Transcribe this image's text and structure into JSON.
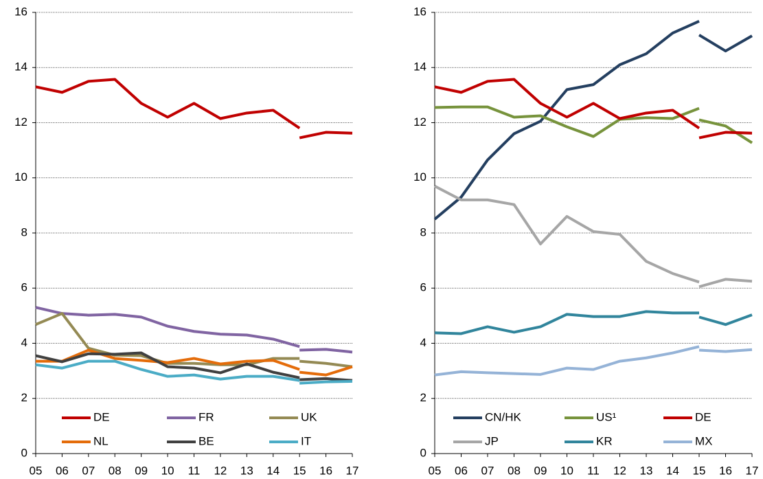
{
  "chart_data": [
    {
      "type": "line",
      "x": [
        5,
        6,
        7,
        8,
        9,
        10,
        11,
        12,
        13,
        14,
        15,
        15,
        15,
        16,
        17
      ],
      "xlim": [
        5,
        17
      ],
      "xticks": [
        {
          "value": 5,
          "label": "05"
        },
        {
          "value": 6,
          "label": "06"
        },
        {
          "value": 7,
          "label": "07"
        },
        {
          "value": 8,
          "label": "08"
        },
        {
          "value": 9,
          "label": "09"
        },
        {
          "value": 10,
          "label": "10"
        },
        {
          "value": 11,
          "label": "11"
        },
        {
          "value": 12,
          "label": "12"
        },
        {
          "value": 13,
          "label": "13"
        },
        {
          "value": 14,
          "label": "14"
        },
        {
          "value": 15,
          "label": "15"
        },
        {
          "value": 16,
          "label": "16"
        },
        {
          "value": 17,
          "label": "17"
        }
      ],
      "ylim": [
        0,
        16
      ],
      "yticks": [
        0,
        2,
        4,
        6,
        8,
        10,
        12,
        14,
        16
      ],
      "grid": true,
      "series": [
        {
          "name": "DE",
          "color": "#c00000",
          "values": [
            13.3,
            13.1,
            13.5,
            13.57,
            12.7,
            12.2,
            12.7,
            12.15,
            12.35,
            12.45,
            11.8,
            null,
            11.45,
            11.65,
            11.62
          ]
        },
        {
          "name": "FR",
          "color": "#8064a2",
          "values": [
            5.3,
            5.08,
            5.02,
            5.05,
            4.95,
            4.62,
            4.43,
            4.33,
            4.3,
            4.15,
            3.88,
            null,
            3.75,
            3.78,
            3.68
          ]
        },
        {
          "name": "UK",
          "color": "#948a54",
          "values": [
            4.68,
            5.08,
            3.82,
            3.57,
            3.55,
            3.27,
            3.27,
            3.22,
            3.22,
            3.45,
            3.45,
            null,
            3.35,
            3.27,
            3.15
          ]
        },
        {
          "name": "NL",
          "color": "#e46c0a",
          "values": [
            3.35,
            3.35,
            3.75,
            3.45,
            3.38,
            3.3,
            3.45,
            3.25,
            3.35,
            3.38,
            3.05,
            null,
            2.95,
            2.85,
            3.15
          ]
        },
        {
          "name": "BE",
          "color": "#404040",
          "values": [
            3.55,
            3.33,
            3.62,
            3.6,
            3.65,
            3.15,
            3.1,
            2.93,
            3.25,
            2.95,
            2.75,
            null,
            2.68,
            2.72,
            2.65
          ]
        },
        {
          "name": "IT",
          "color": "#4bacc6",
          "values": [
            3.22,
            3.1,
            3.35,
            3.35,
            3.05,
            2.8,
            2.85,
            2.7,
            2.8,
            2.8,
            2.65,
            null,
            2.55,
            2.6,
            2.62
          ]
        }
      ]
    },
    {
      "type": "line",
      "x": [
        5,
        6,
        7,
        8,
        9,
        10,
        11,
        12,
        13,
        14,
        15,
        15,
        15,
        16,
        17
      ],
      "xlim": [
        5,
        17
      ],
      "xticks": [
        {
          "value": 5,
          "label": "05"
        },
        {
          "value": 6,
          "label": "06"
        },
        {
          "value": 7,
          "label": "07"
        },
        {
          "value": 8,
          "label": "08"
        },
        {
          "value": 9,
          "label": "09"
        },
        {
          "value": 10,
          "label": "10"
        },
        {
          "value": 11,
          "label": "11"
        },
        {
          "value": 12,
          "label": "12"
        },
        {
          "value": 13,
          "label": "13"
        },
        {
          "value": 14,
          "label": "14"
        },
        {
          "value": 15,
          "label": "15"
        },
        {
          "value": 16,
          "label": "16"
        },
        {
          "value": 17,
          "label": "17"
        }
      ],
      "ylim": [
        0,
        16
      ],
      "yticks": [
        0,
        2,
        4,
        6,
        8,
        10,
        12,
        14,
        16
      ],
      "grid": true,
      "series": [
        {
          "name": "CN/HK",
          "color": "#243f60",
          "values": [
            8.5,
            9.3,
            10.65,
            11.6,
            12.05,
            13.2,
            13.38,
            14.1,
            14.5,
            15.25,
            15.68,
            null,
            15.18,
            14.6,
            15.15
          ]
        },
        {
          "name": "US¹",
          "color": "#77933c",
          "values": [
            12.55,
            12.57,
            12.57,
            12.2,
            12.25,
            11.85,
            11.5,
            12.12,
            12.18,
            12.15,
            12.52,
            null,
            12.1,
            11.88,
            11.27
          ]
        },
        {
          "name": "DE",
          "color": "#c00000",
          "values": [
            13.3,
            13.1,
            13.5,
            13.57,
            12.7,
            12.2,
            12.7,
            12.15,
            12.35,
            12.45,
            11.8,
            null,
            11.45,
            11.65,
            11.62
          ]
        },
        {
          "name": "JP",
          "color": "#a6a6a6",
          "values": [
            9.7,
            9.2,
            9.2,
            9.03,
            7.6,
            8.6,
            8.05,
            7.95,
            6.97,
            6.53,
            6.22,
            null,
            6.05,
            6.32,
            6.25
          ]
        },
        {
          "name": "KR",
          "color": "#31859c",
          "values": [
            4.38,
            4.35,
            4.6,
            4.4,
            4.6,
            5.05,
            4.97,
            4.97,
            5.15,
            5.1,
            5.1,
            null,
            4.95,
            4.68,
            5.03
          ]
        },
        {
          "name": "MX",
          "color": "#95b3d7",
          "values": [
            2.85,
            2.97,
            2.93,
            2.9,
            2.87,
            3.1,
            3.05,
            3.35,
            3.47,
            3.65,
            3.88,
            null,
            3.75,
            3.7,
            3.77
          ]
        }
      ]
    }
  ]
}
